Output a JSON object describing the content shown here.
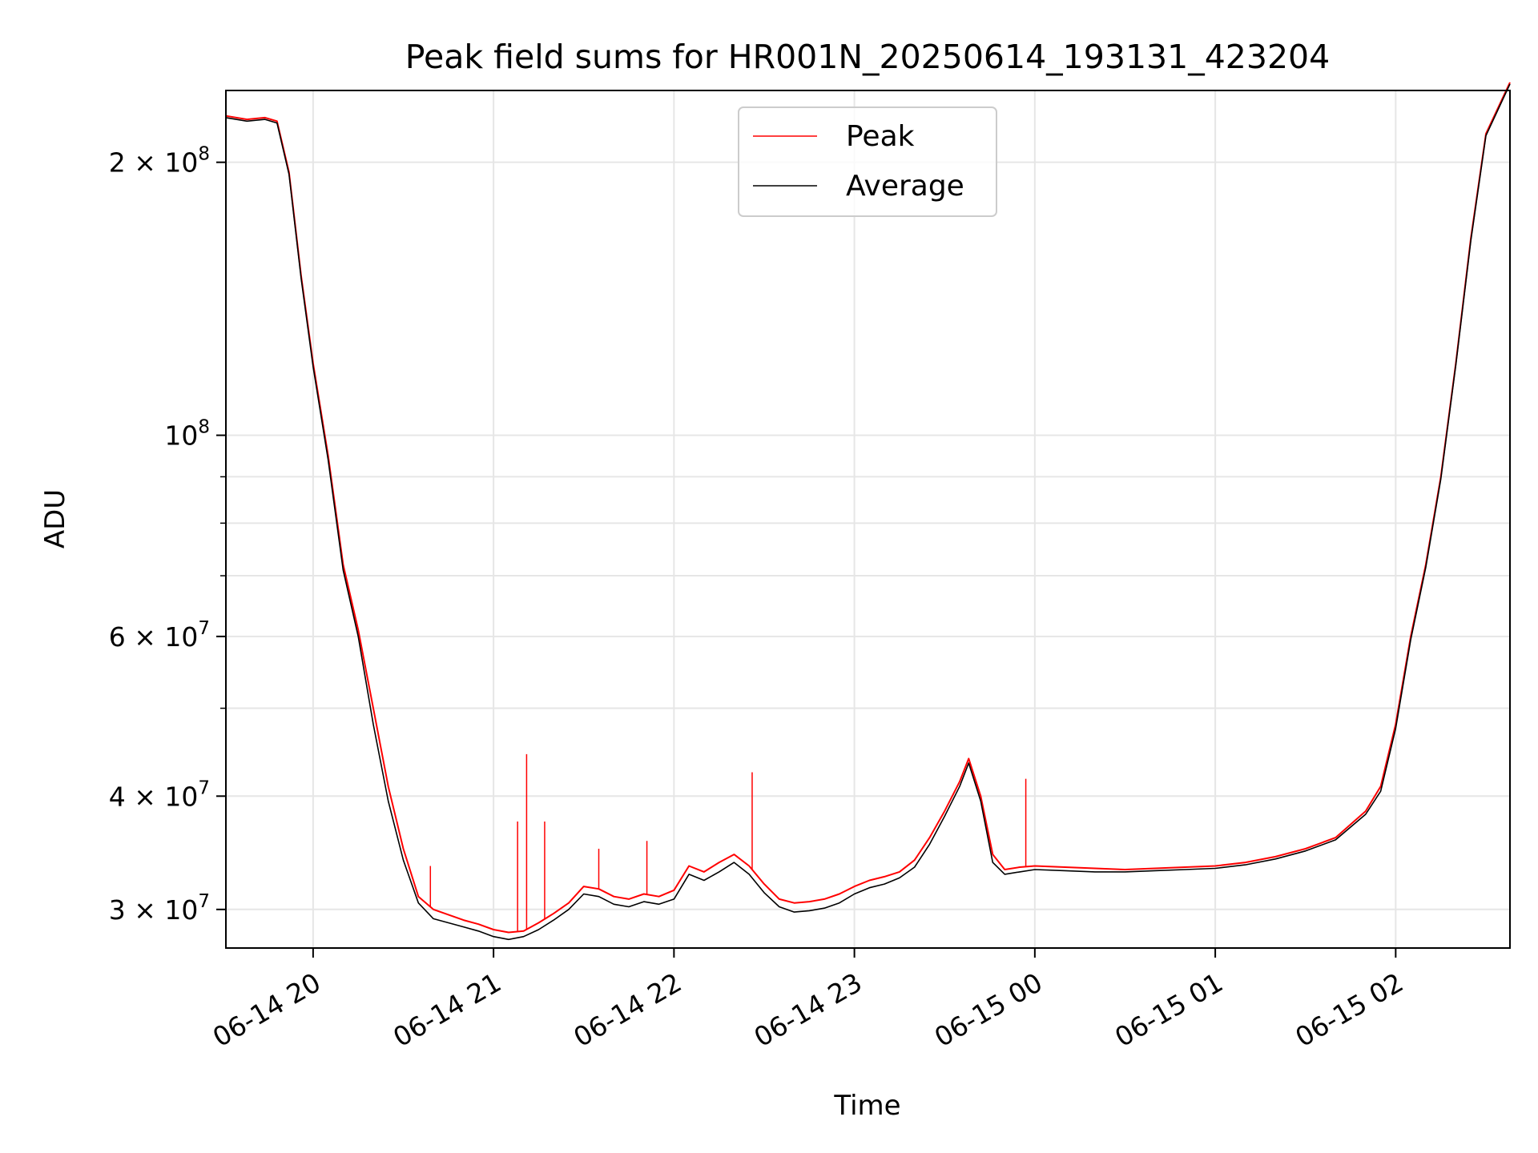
{
  "chart_data": {
    "type": "line",
    "title": "Peak field sums for HR001N_20250614_193131_423204",
    "xlabel": "Time",
    "ylabel": "ADU",
    "yscale": "log",
    "xlim": [
      "2025-06-14 19:31",
      "2025-06-15 02:38"
    ],
    "ylim": [
      27200000,
      240000000
    ],
    "grid": true,
    "legend_position": "upper center",
    "x_ticks": [
      {
        "t": "2025-06-14 20:00",
        "label": "06-14 20"
      },
      {
        "t": "2025-06-14 21:00",
        "label": "06-14 21"
      },
      {
        "t": "2025-06-14 22:00",
        "label": "06-14 22"
      },
      {
        "t": "2025-06-14 23:00",
        "label": "06-14 23"
      },
      {
        "t": "2025-06-15 00:00",
        "label": "06-15 00"
      },
      {
        "t": "2025-06-15 01:00",
        "label": "06-15 01"
      },
      {
        "t": "2025-06-15 02:00",
        "label": "06-15 02"
      }
    ],
    "y_ticks": [
      {
        "value": 30000000,
        "mant": "3 × 10",
        "exp": "7"
      },
      {
        "value": 40000000,
        "mant": "4 × 10",
        "exp": "7"
      },
      {
        "value": 60000000,
        "mant": "6 × 10",
        "exp": "7"
      },
      {
        "value": 100000000,
        "mant": "10",
        "exp": "8"
      },
      {
        "value": 200000000,
        "mant": "2 × 10",
        "exp": "8"
      }
    ],
    "y_minor_ticks": [
      50000000,
      70000000,
      80000000,
      90000000
    ],
    "series": [
      {
        "name": "Peak",
        "color": "#ff0000",
        "x": [
          "2025-06-14 19:31",
          "2025-06-14 19:38",
          "2025-06-14 19:44",
          "2025-06-14 19:48",
          "2025-06-14 19:52",
          "2025-06-14 19:56",
          "2025-06-14 20:00",
          "2025-06-14 20:05",
          "2025-06-14 20:10",
          "2025-06-14 20:15",
          "2025-06-14 20:20",
          "2025-06-14 20:25",
          "2025-06-14 20:30",
          "2025-06-14 20:35",
          "2025-06-14 20:40",
          "2025-06-14 20:45",
          "2025-06-14 20:50",
          "2025-06-14 20:55",
          "2025-06-14 21:00",
          "2025-06-14 21:05",
          "2025-06-14 21:10",
          "2025-06-14 21:15",
          "2025-06-14 21:20",
          "2025-06-14 21:25",
          "2025-06-14 21:30",
          "2025-06-14 21:35",
          "2025-06-14 21:40",
          "2025-06-14 21:45",
          "2025-06-14 21:50",
          "2025-06-14 21:55",
          "2025-06-14 22:00",
          "2025-06-14 22:05",
          "2025-06-14 22:10",
          "2025-06-14 22:15",
          "2025-06-14 22:20",
          "2025-06-14 22:25",
          "2025-06-14 22:30",
          "2025-06-14 22:35",
          "2025-06-14 22:40",
          "2025-06-14 22:45",
          "2025-06-14 22:50",
          "2025-06-14 22:55",
          "2025-06-14 23:00",
          "2025-06-14 23:05",
          "2025-06-14 23:10",
          "2025-06-14 23:15",
          "2025-06-14 23:20",
          "2025-06-14 23:25",
          "2025-06-14 23:30",
          "2025-06-14 23:35",
          "2025-06-14 23:38",
          "2025-06-14 23:42",
          "2025-06-14 23:46",
          "2025-06-14 23:50",
          "2025-06-14 23:55",
          "2025-06-15 00:00",
          "2025-06-15 00:10",
          "2025-06-15 00:20",
          "2025-06-15 00:30",
          "2025-06-15 00:40",
          "2025-06-15 00:50",
          "2025-06-15 01:00",
          "2025-06-15 01:10",
          "2025-06-15 01:20",
          "2025-06-15 01:30",
          "2025-06-15 01:40",
          "2025-06-15 01:50",
          "2025-06-15 01:55",
          "2025-06-15 02:00",
          "2025-06-15 02:05",
          "2025-06-15 02:10",
          "2025-06-15 02:15",
          "2025-06-15 02:20",
          "2025-06-15 02:25",
          "2025-06-15 02:30",
          "2025-06-15 02:38"
        ],
        "y": [
          225000000,
          223000000,
          224000000,
          222000000,
          195000000,
          150000000,
          120000000,
          95000000,
          72000000,
          61000000,
          50000000,
          41000000,
          35000000,
          31000000,
          30000000,
          29600000,
          29200000,
          28900000,
          28500000,
          28300000,
          28400000,
          29000000,
          29700000,
          30500000,
          31800000,
          31600000,
          31000000,
          30800000,
          31200000,
          31000000,
          31500000,
          33500000,
          33000000,
          33800000,
          34500000,
          33500000,
          32000000,
          30800000,
          30500000,
          30600000,
          30800000,
          31200000,
          31800000,
          32300000,
          32600000,
          33000000,
          34000000,
          36000000,
          38500000,
          41500000,
          44000000,
          40000000,
          34500000,
          33200000,
          33400000,
          33500000,
          33400000,
          33300000,
          33200000,
          33300000,
          33400000,
          33500000,
          33800000,
          34300000,
          35000000,
          36000000,
          38500000,
          41000000,
          48000000,
          60000000,
          72000000,
          90000000,
          120000000,
          165000000,
          215000000,
          245000000
        ]
      },
      {
        "name": "Average",
        "color": "#000000",
        "x": [
          "2025-06-14 19:31",
          "2025-06-14 19:38",
          "2025-06-14 19:44",
          "2025-06-14 19:48",
          "2025-06-14 19:52",
          "2025-06-14 19:56",
          "2025-06-14 20:00",
          "2025-06-14 20:05",
          "2025-06-14 20:10",
          "2025-06-14 20:15",
          "2025-06-14 20:20",
          "2025-06-14 20:25",
          "2025-06-14 20:30",
          "2025-06-14 20:35",
          "2025-06-14 20:40",
          "2025-06-14 20:45",
          "2025-06-14 20:50",
          "2025-06-14 20:55",
          "2025-06-14 21:00",
          "2025-06-14 21:05",
          "2025-06-14 21:10",
          "2025-06-14 21:15",
          "2025-06-14 21:20",
          "2025-06-14 21:25",
          "2025-06-14 21:30",
          "2025-06-14 21:35",
          "2025-06-14 21:40",
          "2025-06-14 21:45",
          "2025-06-14 21:50",
          "2025-06-14 21:55",
          "2025-06-14 22:00",
          "2025-06-14 22:05",
          "2025-06-14 22:10",
          "2025-06-14 22:15",
          "2025-06-14 22:20",
          "2025-06-14 22:25",
          "2025-06-14 22:30",
          "2025-06-14 22:35",
          "2025-06-14 22:40",
          "2025-06-14 22:45",
          "2025-06-14 22:50",
          "2025-06-14 22:55",
          "2025-06-14 23:00",
          "2025-06-14 23:05",
          "2025-06-14 23:10",
          "2025-06-14 23:15",
          "2025-06-14 23:20",
          "2025-06-14 23:25",
          "2025-06-14 23:30",
          "2025-06-14 23:35",
          "2025-06-14 23:38",
          "2025-06-14 23:42",
          "2025-06-14 23:46",
          "2025-06-14 23:50",
          "2025-06-14 23:55",
          "2025-06-15 00:00",
          "2025-06-15 00:10",
          "2025-06-15 00:20",
          "2025-06-15 00:30",
          "2025-06-15 00:40",
          "2025-06-15 00:50",
          "2025-06-15 01:00",
          "2025-06-15 01:10",
          "2025-06-15 01:20",
          "2025-06-15 01:30",
          "2025-06-15 01:40",
          "2025-06-15 01:50",
          "2025-06-15 01:55",
          "2025-06-15 02:00",
          "2025-06-15 02:05",
          "2025-06-15 02:10",
          "2025-06-15 02:15",
          "2025-06-15 02:20",
          "2025-06-15 02:25",
          "2025-06-15 02:30",
          "2025-06-15 02:38"
        ],
        "y": [
          224000000,
          222000000,
          223000000,
          221000000,
          194000000,
          149000000,
          119000000,
          94000000,
          71000000,
          60000000,
          48000000,
          39500000,
          34000000,
          30500000,
          29300000,
          29000000,
          28700000,
          28400000,
          28000000,
          27800000,
          28000000,
          28500000,
          29200000,
          30000000,
          31200000,
          31000000,
          30400000,
          30200000,
          30600000,
          30400000,
          30800000,
          32800000,
          32300000,
          33000000,
          33800000,
          32800000,
          31300000,
          30200000,
          29800000,
          29900000,
          30100000,
          30500000,
          31200000,
          31700000,
          32000000,
          32500000,
          33400000,
          35400000,
          38000000,
          41000000,
          43500000,
          39500000,
          33800000,
          32800000,
          33000000,
          33200000,
          33100000,
          33000000,
          33000000,
          33100000,
          33200000,
          33300000,
          33600000,
          34100000,
          34800000,
          35800000,
          38200000,
          40500000,
          47500000,
          59500000,
          71500000,
          89500000,
          119500000,
          164000000,
          214000000,
          244000000
        ]
      }
    ],
    "spikes": [
      {
        "series": "Peak",
        "x": "2025-06-14 21:08",
        "y": 37500000
      },
      {
        "series": "Peak",
        "x": "2025-06-14 21:11",
        "y": 44500000
      },
      {
        "series": "Peak",
        "x": "2025-06-14 21:17",
        "y": 37500000
      },
      {
        "series": "Peak",
        "x": "2025-06-14 21:35",
        "y": 35000000
      },
      {
        "series": "Peak",
        "x": "2025-06-14 21:51",
        "y": 35700000
      },
      {
        "series": "Peak",
        "x": "2025-06-14 22:26",
        "y": 42500000
      },
      {
        "series": "Peak",
        "x": "2025-06-14 23:57",
        "y": 41800000
      },
      {
        "series": "Peak",
        "x": "2025-06-14 20:39",
        "y": 33500000
      }
    ]
  }
}
